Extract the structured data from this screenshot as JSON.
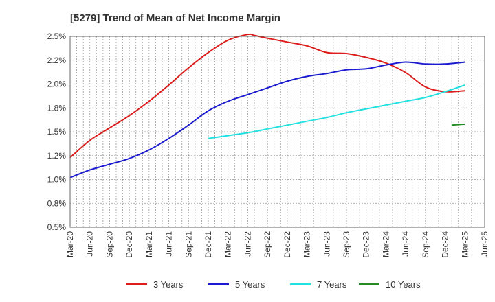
{
  "chart_data": {
    "type": "line",
    "title": "[5279]  Trend of Mean of Net Income Margin",
    "xlabel": "",
    "ylabel": "",
    "ylim": [
      0.5,
      2.5
    ],
    "y_ticks": [
      "0.5%",
      "0.8%",
      "1.0%",
      "1.2%",
      "1.5%",
      "1.8%",
      "2.0%",
      "2.2%",
      "2.5%"
    ],
    "x_ticks": [
      "Mar-20",
      "Jun-20",
      "Sep-20",
      "Dec-20",
      "Mar-21",
      "Jun-21",
      "Sep-21",
      "Dec-21",
      "Mar-22",
      "Jun-22",
      "Sep-22",
      "Dec-22",
      "Mar-23",
      "Jun-23",
      "Sep-23",
      "Dec-23",
      "Mar-24",
      "Jun-24",
      "Sep-24",
      "Dec-24",
      "Mar-25",
      "Jun-25"
    ],
    "grid": true,
    "legend_position": "bottom",
    "series": [
      {
        "name": "3 Years",
        "color": "#dd1c1c",
        "x": [
          "Mar-20",
          "Jun-20",
          "Sep-20",
          "Dec-20",
          "Mar-21",
          "Jun-21",
          "Sep-21",
          "Dec-21",
          "Mar-22",
          "Jun-22",
          "Jul-22",
          "Sep-22",
          "Dec-22",
          "Mar-23",
          "Jun-23",
          "Sep-23",
          "Dec-23",
          "Mar-24",
          "Jun-24",
          "Sep-24",
          "Dec-24",
          "Mar-25"
        ],
        "values": [
          1.23,
          1.41,
          1.54,
          1.67,
          1.82,
          1.99,
          2.17,
          2.33,
          2.46,
          2.52,
          2.51,
          2.48,
          2.44,
          2.4,
          2.33,
          2.32,
          2.28,
          2.22,
          2.12,
          1.97,
          1.92,
          1.93
        ]
      },
      {
        "name": "5 Years",
        "color": "#1a1ad0",
        "x": [
          "Mar-20",
          "Jun-20",
          "Sep-20",
          "Dec-20",
          "Mar-21",
          "Jun-21",
          "Sep-21",
          "Dec-21",
          "Mar-22",
          "Jun-22",
          "Sep-22",
          "Dec-22",
          "Mar-23",
          "Jun-23",
          "Sep-23",
          "Dec-23",
          "Mar-24",
          "Jun-24",
          "Sep-24",
          "Dec-24",
          "Mar-25"
        ],
        "values": [
          1.02,
          1.1,
          1.16,
          1.22,
          1.31,
          1.43,
          1.57,
          1.72,
          1.82,
          1.89,
          1.96,
          2.03,
          2.08,
          2.11,
          2.15,
          2.16,
          2.2,
          2.23,
          2.21,
          2.21,
          2.23
        ]
      },
      {
        "name": "7 Years",
        "color": "#22e0e0",
        "x": [
          "Dec-21",
          "Mar-22",
          "Jun-22",
          "Sep-22",
          "Dec-22",
          "Mar-23",
          "Jun-23",
          "Sep-23",
          "Dec-23",
          "Mar-24",
          "Jun-24",
          "Sep-24",
          "Dec-24",
          "Mar-25"
        ],
        "values": [
          1.43,
          1.46,
          1.49,
          1.53,
          1.57,
          1.61,
          1.65,
          1.7,
          1.74,
          1.78,
          1.82,
          1.86,
          1.92,
          1.99
        ]
      },
      {
        "name": "10 Years",
        "color": "#228b22",
        "x": [
          "Jan-25",
          "Mar-25"
        ],
        "values": [
          1.57,
          1.58
        ]
      }
    ]
  }
}
